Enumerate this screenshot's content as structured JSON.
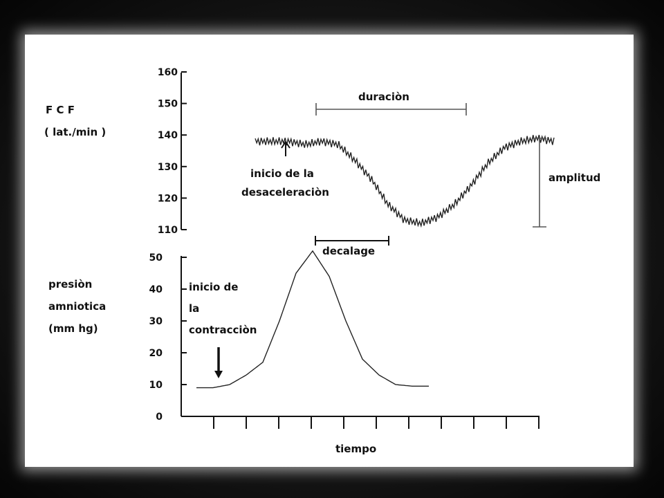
{
  "chart_data": [
    {
      "type": "line",
      "ylabel_lines": [
        "F C F",
        "( lat./min )"
      ],
      "ylim": [
        110,
        160
      ],
      "yticks": [
        110,
        120,
        130,
        140,
        150,
        160
      ],
      "x": [
        0.0,
        0.5,
        1.0,
        1.5,
        2.0,
        2.5,
        3.0,
        3.5,
        4.0,
        4.5,
        5.0,
        5.5,
        6.0,
        6.5,
        7.0,
        7.5,
        8.0,
        8.5,
        9.0
      ],
      "series": [
        {
          "values": [
            138,
            138,
            138,
            137,
            138,
            137,
            132,
            126,
            118,
            113,
            112,
            114,
            118,
            124,
            131,
            136,
            138,
            139,
            138
          ]
        }
      ],
      "annotations": {
        "onset": "inicio de la\ndesaceleraciòn",
        "duration": "duraciòn",
        "amplitude": "amplitud",
        "lag": "decalage"
      }
    },
    {
      "type": "line",
      "ylabel_lines": [
        "presiòn",
        "amniotica",
        "(mm hg)"
      ],
      "xlabel": "tiempo",
      "ylim": [
        0,
        50
      ],
      "yticks": [
        0,
        10,
        20,
        30,
        40,
        50
      ],
      "x": [
        0.0,
        0.5,
        1.0,
        1.5,
        2.0,
        2.5,
        3.0,
        3.5,
        4.0,
        4.5,
        5.0,
        5.5,
        6.0,
        6.5,
        7.0
      ],
      "series": [
        {
          "values": [
            9,
            9,
            10,
            13,
            17,
            30,
            45,
            52,
            44,
            30,
            18,
            13,
            10,
            9.5,
            9.5
          ]
        }
      ],
      "annotations": {
        "onset_lines": [
          "inicio de",
          "la",
          "contracciòn"
        ]
      }
    }
  ]
}
